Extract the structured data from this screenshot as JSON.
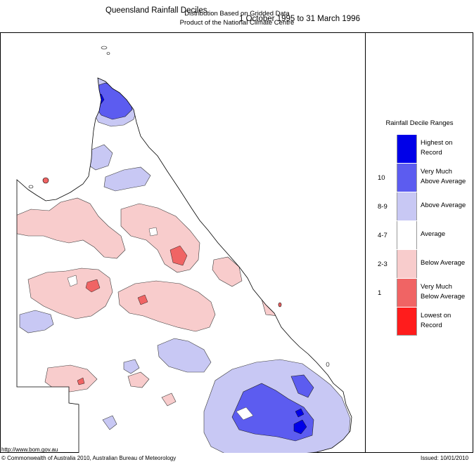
{
  "header": {
    "title": "Queensland Rainfall Deciles",
    "period": "1 October 1995 to 31 March 1996",
    "subtitle1": "Distribution Based on Gridded Data",
    "subtitle2": "Product of the National Climate Centre"
  },
  "legend": {
    "title": "Rainfall Decile Ranges",
    "items": [
      {
        "range": "",
        "label_line1": "Highest on",
        "label_line2": "Record",
        "color": "#0000e8"
      },
      {
        "range": "10",
        "label_line1": "Very Much",
        "label_line2": "Above Average",
        "color": "#5c5cf0"
      },
      {
        "range": "8-9",
        "label_line1": "Above Average",
        "label_line2": "",
        "color": "#c8c8f4"
      },
      {
        "range": "4-7",
        "label_line1": "Average",
        "label_line2": "",
        "color": "#ffffff"
      },
      {
        "range": "2-3",
        "label_line1": "Below Average",
        "label_line2": "",
        "color": "#f8cccc"
      },
      {
        "range": "1",
        "label_line1": "Very Much",
        "label_line2": "Below Average",
        "color": "#f06464"
      },
      {
        "range": "",
        "label_line1": "Lowest on",
        "label_line2": "Record",
        "color": "#ff1c1c"
      }
    ]
  },
  "footer": {
    "url": "http://www.bom.gov.au",
    "copyright": "© Commonwealth of Australia 2010, Australian Bureau of Meteorology",
    "issued": "Issued: 10/01/2010"
  },
  "colors": {
    "above": "#c8c8f4",
    "very_much_above": "#5c5cf0",
    "highest": "#0000e8",
    "below": "#f8cccc",
    "very_much_below": "#f06464"
  }
}
